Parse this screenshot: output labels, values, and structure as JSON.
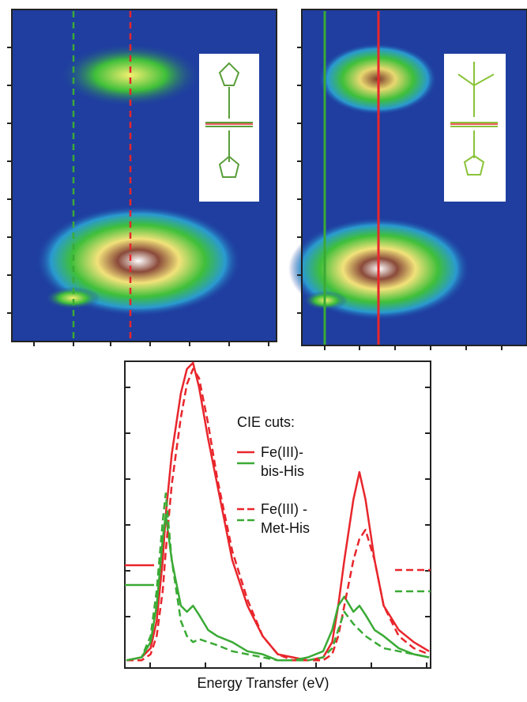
{
  "chart_data": {
    "type": "line",
    "xlabel": "Energy Transfer (eV)",
    "legend": {
      "title": "CIE cuts:",
      "entries": [
        {
          "lines": [
            "Fe(III)-",
            "bis-His"
          ],
          "dash": false
        },
        {
          "lines": [
            "Fe(III) -",
            "Met-His"
          ],
          "dash": true
        }
      ]
    },
    "x": [
      0,
      5,
      8,
      10,
      12,
      13,
      15,
      18,
      20,
      22,
      24,
      27,
      30,
      35,
      40,
      45,
      50,
      55,
      60,
      65,
      68,
      70,
      72,
      75,
      77,
      79,
      82,
      85,
      90,
      95,
      100
    ],
    "xlim": [
      0,
      100
    ],
    "ylim": [
      0,
      1
    ],
    "series": [
      {
        "color": "#e8262c",
        "dash": false,
        "values": [
          0.02,
          0.03,
          0.06,
          0.15,
          0.35,
          0.5,
          0.7,
          0.9,
          0.98,
          1.0,
          0.92,
          0.75,
          0.6,
          0.35,
          0.2,
          0.1,
          0.04,
          0.03,
          0.02,
          0.03,
          0.08,
          0.2,
          0.35,
          0.55,
          0.64,
          0.55,
          0.35,
          0.2,
          0.12,
          0.08,
          0.05
        ]
      },
      {
        "color": "#3aaa35",
        "dash": false,
        "values": [
          0.02,
          0.03,
          0.08,
          0.2,
          0.42,
          0.5,
          0.35,
          0.2,
          0.18,
          0.2,
          0.17,
          0.12,
          0.1,
          0.08,
          0.05,
          0.04,
          0.02,
          0.02,
          0.03,
          0.05,
          0.12,
          0.2,
          0.23,
          0.18,
          0.2,
          0.17,
          0.12,
          0.1,
          0.06,
          0.04,
          0.03
        ]
      },
      {
        "color": "#e8262c",
        "dash": true,
        "values": [
          0.02,
          0.02,
          0.04,
          0.1,
          0.25,
          0.38,
          0.6,
          0.82,
          0.93,
          0.98,
          0.95,
          0.8,
          0.62,
          0.38,
          0.22,
          0.1,
          0.04,
          0.02,
          0.02,
          0.02,
          0.04,
          0.1,
          0.2,
          0.35,
          0.42,
          0.45,
          0.35,
          0.2,
          0.1,
          0.06,
          0.04
        ]
      },
      {
        "color": "#3aaa35",
        "dash": true,
        "values": [
          0.02,
          0.03,
          0.1,
          0.25,
          0.48,
          0.57,
          0.35,
          0.15,
          0.1,
          0.08,
          0.09,
          0.08,
          0.07,
          0.05,
          0.04,
          0.03,
          0.02,
          0.02,
          0.02,
          0.03,
          0.06,
          0.12,
          0.18,
          0.14,
          0.12,
          0.1,
          0.08,
          0.06,
          0.05,
          0.04,
          0.03
        ]
      }
    ]
  }
}
